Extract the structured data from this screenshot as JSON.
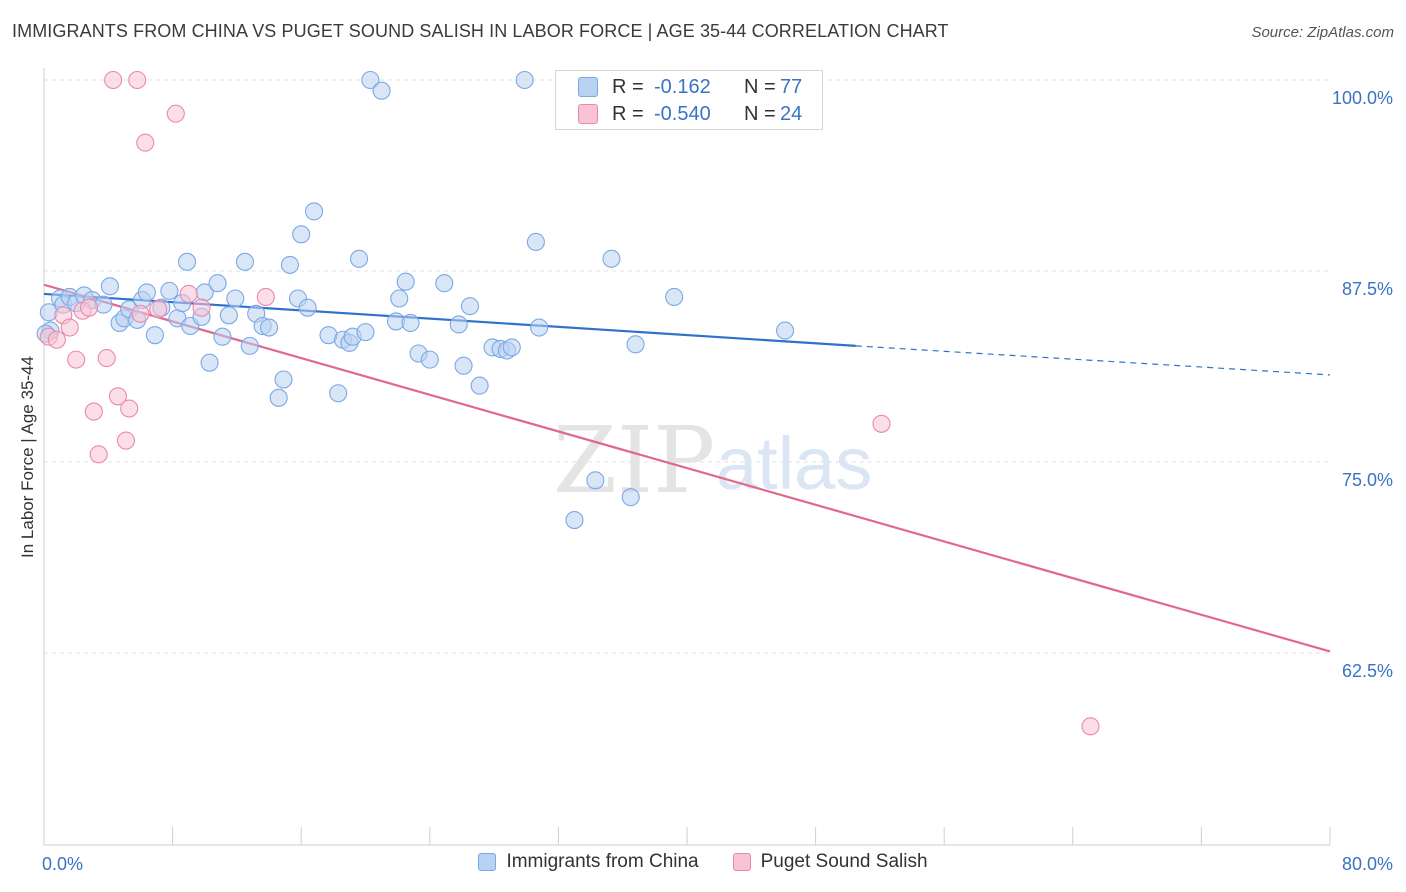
{
  "title": "IMMIGRANTS FROM CHINA VS PUGET SOUND SALISH IN LABOR FORCE | AGE 35-44 CORRELATION CHART",
  "source": "Source: ZipAtlas.com",
  "watermark": {
    "zip": "ZIP",
    "atlas": "atlas"
  },
  "stats": [
    {
      "r_label": "R =",
      "r_value": "-0.162",
      "n_label": "N =",
      "n_value": "77"
    },
    {
      "r_label": "R =",
      "r_value": "-0.540",
      "n_label": "N =",
      "n_value": "24"
    }
  ],
  "chart_data": {
    "type": "scatter",
    "ylabel": "In Labor Force | Age 35-44",
    "xlim": [
      0,
      80
    ],
    "ylim": [
      50,
      102
    ],
    "x_tick_labels": [
      "0.0%",
      "80.0%"
    ],
    "y_ticks": [
      {
        "value": 100,
        "label": "100.0%"
      },
      {
        "value": 87.5,
        "label": "87.5%"
      },
      {
        "value": 75,
        "label": "75.0%"
      },
      {
        "value": 62.5,
        "label": "62.5%"
      }
    ],
    "grid": true,
    "legend_position": "bottom-center",
    "series": [
      {
        "name": "Immigrants from China",
        "color": "#7aa8e6",
        "fill": "#b9d2f3",
        "line_color": "#2f72cc",
        "trend": {
          "x0": 0,
          "y0": 86.0,
          "x1": 50.5,
          "y1": 82.6,
          "x_dash_end": 80,
          "y_dash_end": 80.7
        },
        "points": [
          [
            0.3,
            84.8
          ],
          [
            0.4,
            83.6
          ],
          [
            1.0,
            85.7
          ],
          [
            1.2,
            85.3
          ],
          [
            1.6,
            85.8
          ],
          [
            2.0,
            85.4
          ],
          [
            2.5,
            85.9
          ],
          [
            3.0,
            85.6
          ],
          [
            3.7,
            85.3
          ],
          [
            4.1,
            86.5
          ],
          [
            4.7,
            84.1
          ],
          [
            5.0,
            84.4
          ],
          [
            5.3,
            85.0
          ],
          [
            5.8,
            84.3
          ],
          [
            6.1,
            85.6
          ],
          [
            6.4,
            86.1
          ],
          [
            6.9,
            83.3
          ],
          [
            7.3,
            85.1
          ],
          [
            7.8,
            86.2
          ],
          [
            8.3,
            84.4
          ],
          [
            8.6,
            85.4
          ],
          [
            8.9,
            88.1
          ],
          [
            9.1,
            83.9
          ],
          [
            9.8,
            84.5
          ],
          [
            10.0,
            86.1
          ],
          [
            10.3,
            81.5
          ],
          [
            10.8,
            86.7
          ],
          [
            11.1,
            83.2
          ],
          [
            11.5,
            84.6
          ],
          [
            11.9,
            85.7
          ],
          [
            12.5,
            88.1
          ],
          [
            12.8,
            82.6
          ],
          [
            13.2,
            84.7
          ],
          [
            13.6,
            83.9
          ],
          [
            14.0,
            83.8
          ],
          [
            14.6,
            79.2
          ],
          [
            14.9,
            80.4
          ],
          [
            15.3,
            87.9
          ],
          [
            15.8,
            85.7
          ],
          [
            16.0,
            89.9
          ],
          [
            16.4,
            85.1
          ],
          [
            16.8,
            91.4
          ],
          [
            17.7,
            83.3
          ],
          [
            18.3,
            79.5
          ],
          [
            18.6,
            83.0
          ],
          [
            19.0,
            82.8
          ],
          [
            19.2,
            83.2
          ],
          [
            19.6,
            88.3
          ],
          [
            20.0,
            83.5
          ],
          [
            20.3,
            100.0
          ],
          [
            21.0,
            99.3
          ],
          [
            21.9,
            84.2
          ],
          [
            22.1,
            85.7
          ],
          [
            22.5,
            86.8
          ],
          [
            22.8,
            84.1
          ],
          [
            23.3,
            82.1
          ],
          [
            24.0,
            81.7
          ],
          [
            24.9,
            86.7
          ],
          [
            25.8,
            84.0
          ],
          [
            26.1,
            81.3
          ],
          [
            26.5,
            85.2
          ],
          [
            27.1,
            80.0
          ],
          [
            27.9,
            82.5
          ],
          [
            28.4,
            82.4
          ],
          [
            28.8,
            82.3
          ],
          [
            29.1,
            82.5
          ],
          [
            29.9,
            100.0
          ],
          [
            30.6,
            89.4
          ],
          [
            30.8,
            83.8
          ],
          [
            33.0,
            71.2
          ],
          [
            34.3,
            73.8
          ],
          [
            35.3,
            88.3
          ],
          [
            36.5,
            72.7
          ],
          [
            36.8,
            82.7
          ],
          [
            39.2,
            85.8
          ],
          [
            46.1,
            83.6
          ],
          [
            0.1,
            83.4
          ]
        ]
      },
      {
        "name": "Puget Sound Salish",
        "color": "#e88aaa",
        "fill": "#f7c3d5",
        "line_color": "#e0688f",
        "trend": {
          "x0": 0,
          "y0": 86.6,
          "x1": 80,
          "y1": 62.6
        },
        "points": [
          [
            0.3,
            83.2
          ],
          [
            0.8,
            83.0
          ],
          [
            1.2,
            84.6
          ],
          [
            1.6,
            83.8
          ],
          [
            2.0,
            81.7
          ],
          [
            2.4,
            84.9
          ],
          [
            2.8,
            85.1
          ],
          [
            3.1,
            78.3
          ],
          [
            3.4,
            75.5
          ],
          [
            3.9,
            81.8
          ],
          [
            4.3,
            100.0
          ],
          [
            4.6,
            79.3
          ],
          [
            5.1,
            76.4
          ],
          [
            5.3,
            78.5
          ],
          [
            5.8,
            100.0
          ],
          [
            6.0,
            84.7
          ],
          [
            6.3,
            95.9
          ],
          [
            7.1,
            85.0
          ],
          [
            8.2,
            97.8
          ],
          [
            9.0,
            86.0
          ],
          [
            9.8,
            85.1
          ],
          [
            13.8,
            85.8
          ],
          [
            52.1,
            77.5
          ],
          [
            65.1,
            57.7
          ]
        ]
      }
    ]
  }
}
